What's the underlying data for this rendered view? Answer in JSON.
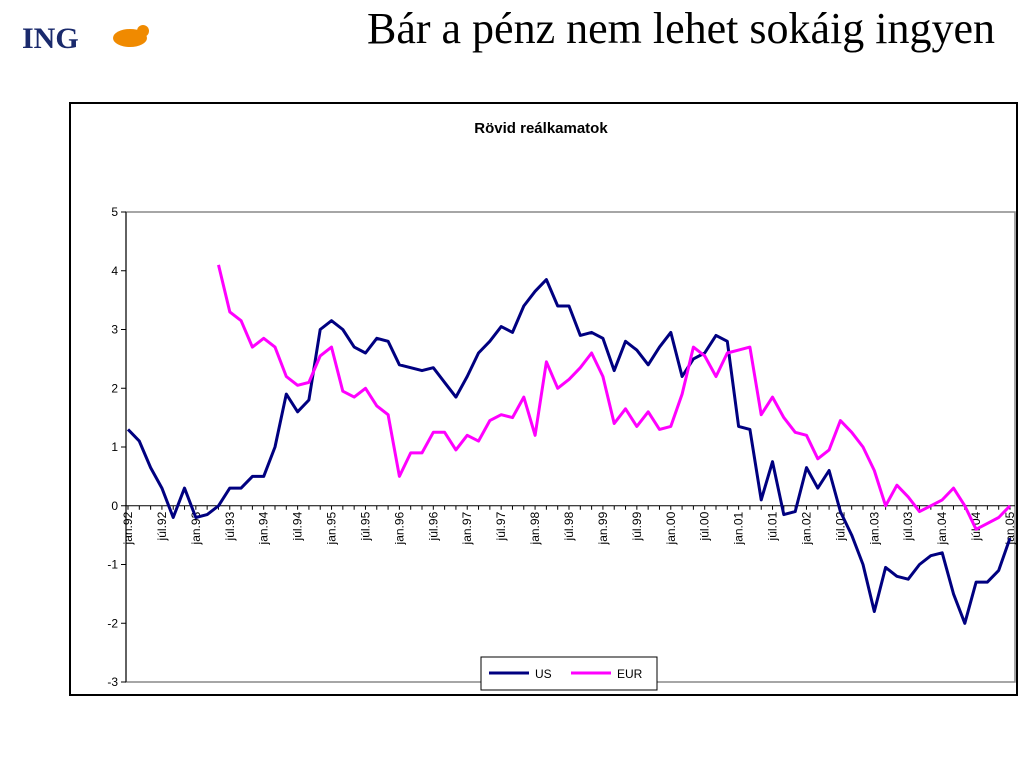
{
  "header": {
    "logo": "ING",
    "title": "Bár a pénz nem lehet sokáig ingyen"
  },
  "chart_data": {
    "type": "line",
    "title": "Rövid reálkamatok",
    "categories": [
      "jan.92",
      null,
      null,
      "júl.92",
      null,
      null,
      "jan.93",
      null,
      null,
      "júl.93",
      null,
      null,
      "jan.94",
      null,
      null,
      "júl.94",
      null,
      null,
      "jan.95",
      null,
      null,
      "júl.95",
      null,
      null,
      "jan.96",
      null,
      null,
      "júl.96",
      null,
      null,
      "jan.97",
      null,
      null,
      "júl.97",
      null,
      null,
      "jan.98",
      null,
      null,
      "júl.98",
      null,
      null,
      "jan.99",
      null,
      null,
      "júl.99",
      null,
      null,
      "jan.00",
      null,
      null,
      "júl.00",
      null,
      null,
      "jan.01",
      null,
      null,
      "júl.01",
      null,
      null,
      "jan.02",
      null,
      null,
      "júl.02",
      null,
      null,
      "jan.03",
      null,
      null,
      "júl.03",
      null,
      null,
      "jan.04",
      null,
      null,
      "júl.04",
      null,
      null,
      "jan.05"
    ],
    "series": [
      {
        "name": "US",
        "color": "#000080",
        "values": [
          1.3,
          1.1,
          0.65,
          0.3,
          -0.2,
          0.3,
          -0.2,
          -0.15,
          0.0,
          0.3,
          0.3,
          0.5,
          0.5,
          1.0,
          1.9,
          1.6,
          1.8,
          3.0,
          3.15,
          3.0,
          2.7,
          2.6,
          2.85,
          2.8,
          2.4,
          2.35,
          2.3,
          2.35,
          2.1,
          1.85,
          2.2,
          2.6,
          2.8,
          3.05,
          2.95,
          3.4,
          3.65,
          3.85,
          3.4,
          3.4,
          2.9,
          2.95,
          2.85,
          2.3,
          2.8,
          2.65,
          2.4,
          2.7,
          2.95,
          2.2,
          2.5,
          2.6,
          2.9,
          2.8,
          1.35,
          1.3,
          0.1,
          0.75,
          -0.15,
          -0.1,
          0.65,
          0.3,
          0.6,
          -0.1,
          -0.5,
          -1.0,
          -1.8,
          -1.05,
          -1.2,
          -1.25,
          -1.0,
          -0.85,
          -0.8,
          -1.5,
          -2.0,
          -1.3,
          -1.3,
          -1.1,
          -0.55
        ]
      },
      {
        "name": "EUR",
        "color": "#ff00ff",
        "values": [
          null,
          null,
          null,
          null,
          null,
          null,
          null,
          null,
          4.1,
          3.3,
          3.15,
          2.7,
          2.85,
          2.7,
          2.2,
          2.05,
          2.1,
          2.55,
          2.7,
          1.95,
          1.85,
          2.0,
          1.7,
          1.55,
          0.5,
          0.9,
          0.9,
          1.25,
          1.25,
          0.95,
          1.2,
          1.1,
          1.45,
          1.55,
          1.5,
          1.85,
          1.2,
          2.45,
          2.0,
          2.15,
          2.35,
          2.6,
          2.2,
          1.4,
          1.65,
          1.35,
          1.6,
          1.3,
          1.35,
          1.9,
          2.7,
          2.55,
          2.2,
          2.6,
          2.65,
          2.7,
          1.55,
          1.85,
          1.5,
          1.25,
          1.2,
          0.8,
          0.95,
          1.45,
          1.25,
          1.0,
          0.6,
          0.0,
          0.35,
          0.15,
          -0.1,
          0.0,
          0.1,
          0.3,
          0.0,
          -0.4,
          -0.3,
          -0.2,
          0.0
        ]
      }
    ],
    "ylim": [
      -3,
      5
    ],
    "yticks": [
      -3,
      -2,
      -1,
      0,
      1,
      2,
      3,
      4,
      5
    ]
  }
}
